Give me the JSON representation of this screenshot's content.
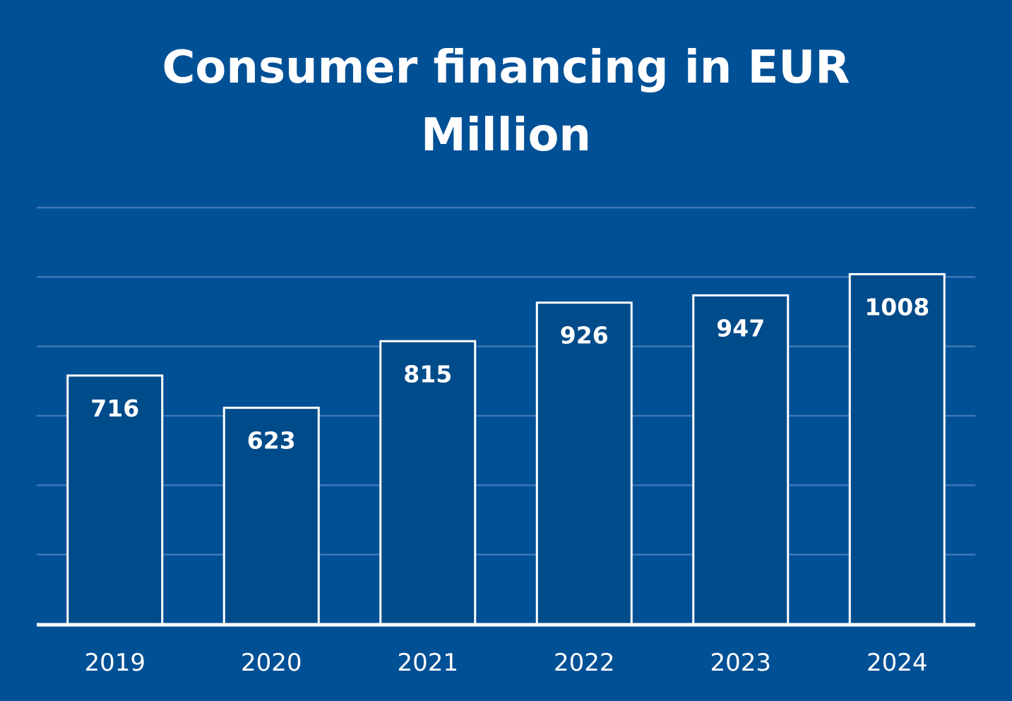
{
  "chart_data": {
    "type": "bar",
    "title": "Consumer financing in EUR Million",
    "categories": [
      "2019",
      "2020",
      "2021",
      "2022",
      "2023",
      "2024"
    ],
    "values": [
      716,
      623,
      815,
      926,
      947,
      1008
    ],
    "value_labels": [
      "716",
      "623",
      "815",
      "926",
      "947",
      "1008"
    ],
    "xlabel": "",
    "ylabel": "",
    "ylim": [
      0,
      1200
    ],
    "grid": true,
    "legend": "none",
    "y_tick_labels_shown": false
  },
  "colors": {
    "background": "#005096",
    "bar_fill": "#004B8A",
    "bar_stroke": "#ffffff",
    "gridline": "#3F78B4",
    "axis": "#ffffff",
    "text": "#ffffff"
  }
}
